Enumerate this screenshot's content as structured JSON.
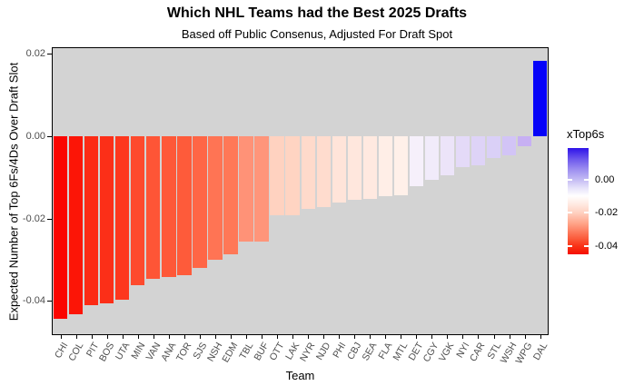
{
  "title": "Which NHL Teams had the Best 2025 Drafts",
  "subtitle": "Based off Public Consenus, Adjusted For Draft Spot",
  "colors": {
    "background": "#FFFFFF",
    "panel_background": "#D3D3D3",
    "panel_border": "#000000",
    "tick_label": "#4D4D4D",
    "extreme_negative": "#FB0500",
    "midpoint": "#FFFFFF",
    "extreme_positive": "#0502F8"
  },
  "chart_data": {
    "type": "bar",
    "title": "Which NHL Teams had the Best 2025 Drafts",
    "subtitle": "Based off Public Consenus, Adjusted For Draft Spot",
    "xlabel": "Team",
    "ylabel": "Expected Number of Top 6Fs/4Ds Over Draft Slot",
    "ylim": [
      -0.0471,
      0.0211
    ],
    "grid": false,
    "yticks": [
      0.02,
      0.0,
      -0.02,
      -0.04
    ],
    "ytick_labels": [
      "0.02",
      "0.00",
      "-0.02",
      "-0.04"
    ],
    "categories": [
      "CHI",
      "COL",
      "PIT",
      "BOS",
      "UTA",
      "MIN",
      "VAN",
      "ANA",
      "TOR",
      "SJS",
      "NSH",
      "EDM",
      "TBL",
      "BUF",
      "OTT",
      "LAK",
      "NYR",
      "NJD",
      "PHI",
      "CBJ",
      "SEA",
      "FLA",
      "MTL",
      "DET",
      "CGY",
      "VGK",
      "NYI",
      "CAR",
      "STL",
      "WSH",
      "WPG",
      "DAL"
    ],
    "values": [
      -0.0443,
      -0.0432,
      -0.041,
      -0.0406,
      -0.0396,
      -0.0362,
      -0.0347,
      -0.0341,
      -0.0338,
      -0.0319,
      -0.0299,
      -0.0287,
      -0.0256,
      -0.0255,
      -0.0193,
      -0.0191,
      -0.0176,
      -0.0171,
      -0.016,
      -0.0155,
      -0.0153,
      -0.0146,
      -0.0144,
      -0.0121,
      -0.0105,
      -0.0094,
      -0.0074,
      -0.007,
      -0.0054,
      -0.0046,
      -0.0024,
      0.0182
    ],
    "bar_colors": [
      "#FB0500",
      "#FC1507",
      "#FC2B15",
      "#FC2F18",
      "#FD371E",
      "#FE4A2D",
      "#FE5536",
      "#FE5838",
      "#FE5B3A",
      "#FF6646",
      "#FF7454",
      "#FF7857",
      "#FF9277",
      "#FF957A",
      "#FFD2C0",
      "#FFD4C2",
      "#FFDACB",
      "#FFDCCE",
      "#FFE4D9",
      "#FFE7DD",
      "#FFE9E0",
      "#FFEEE7",
      "#FFF0E9",
      "#F6F0FB",
      "#F1EBFA",
      "#ECE4F9",
      "#E4DAF8",
      "#DED3F7",
      "#DAD0F7",
      "#D2C4F6",
      "#C7B0F3",
      "#0502F8"
    ],
    "legend": {
      "title": "xTop6s",
      "position": "right",
      "range": [
        -0.045,
        0.019
      ],
      "tick_values": [
        0.0,
        -0.02,
        -0.04
      ],
      "tick_labels": [
        "0.00",
        "-0.02",
        "-0.04"
      ],
      "gradient_stops": [
        {
          "pos": 0,
          "color": "#2E12E9"
        },
        {
          "pos": 10,
          "color": "#6A55EC"
        },
        {
          "pos": 20,
          "color": "#9C8DF0"
        },
        {
          "pos": 30,
          "color": "#C5BCF4"
        },
        {
          "pos": 38,
          "color": "#E8E4FA"
        },
        {
          "pos": 45,
          "color": "#FFFFFF"
        },
        {
          "pos": 55,
          "color": "#FFE3D9"
        },
        {
          "pos": 61,
          "color": "#FFD0C0"
        },
        {
          "pos": 72,
          "color": "#FF9F83"
        },
        {
          "pos": 85,
          "color": "#FB5C3C"
        },
        {
          "pos": 92,
          "color": "#F93418"
        },
        {
          "pos": 100,
          "color": "#F50F00"
        }
      ]
    }
  }
}
